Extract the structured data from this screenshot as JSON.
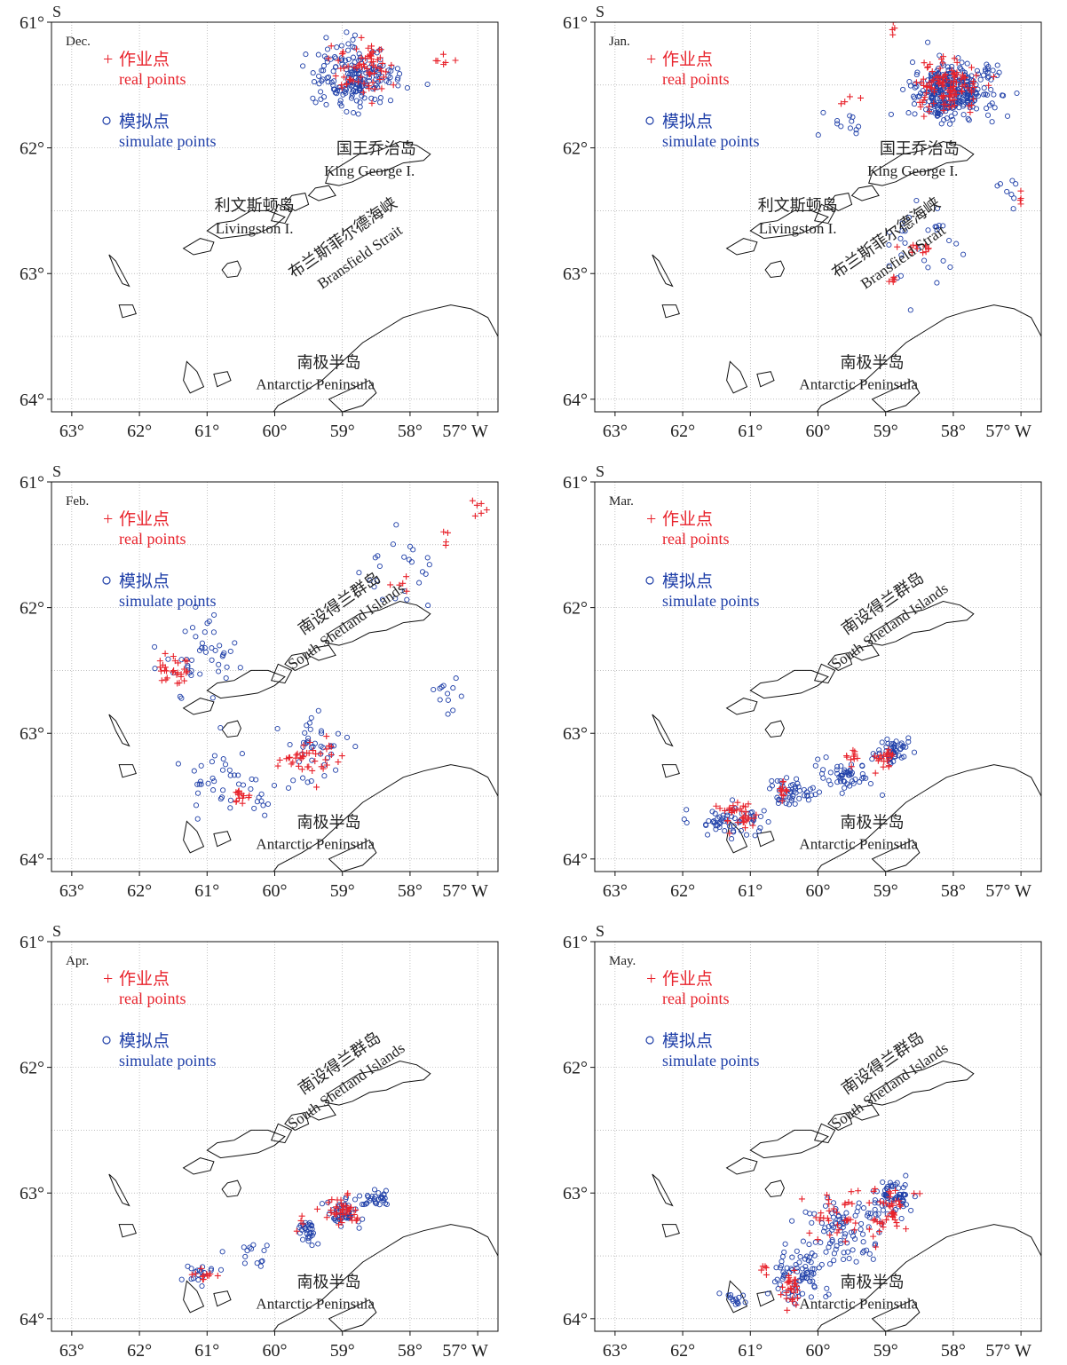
{
  "colors": {
    "real": "#e8222b",
    "simulated": "#1f3fa8",
    "coast": "#111111",
    "grid": "#9a9a9a",
    "text": "#222222"
  },
  "axes": {
    "lat_unit": "S",
    "lon_unit": "W",
    "lat_ticks": [
      "61°",
      "62°",
      "63°",
      "64°"
    ],
    "lon_ticks": [
      "63°",
      "62°",
      "61°",
      "60°",
      "59°",
      "58°",
      "57° W"
    ],
    "lat_range": [
      61.0,
      64.1
    ],
    "lon_range": [
      63.3,
      56.7
    ]
  },
  "legend": {
    "real_symbol": "+",
    "real_cn": "作业点",
    "real_en": "real points",
    "sim_symbol": "o",
    "sim_cn": "模拟点",
    "sim_en": "simulate points"
  },
  "place_labels": {
    "king_george_cn": "国王乔治岛",
    "king_george_en": "King George I.",
    "livingston_cn": "利文斯顿岛",
    "livingston_en": "Livingston I.",
    "bransfield_cn": "布兰斯菲尔德海峡",
    "bransfield_en": "Bransfield Strait",
    "peninsula_cn": "南极半岛",
    "peninsula_en": "Antarctic Peninsula",
    "shetland_cn": "南设得兰群岛",
    "shetland_en": "South Shetland Islands"
  },
  "chart_data": [
    {
      "type": "scatter",
      "month": "Dec.",
      "labels": [
        "king_george",
        "livingston",
        "bransfield",
        "peninsula"
      ],
      "real_clusters": [
        {
          "lon": 58.7,
          "lat": 61.35,
          "n": 70,
          "spread": [
            0.45,
            0.18
          ]
        },
        {
          "lon": 57.5,
          "lat": 61.3,
          "n": 6,
          "spread": [
            0.2,
            0.05
          ]
        }
      ],
      "sim_clusters": [
        {
          "lon": 58.8,
          "lat": 61.45,
          "n": 190,
          "spread": [
            0.55,
            0.22
          ]
        }
      ]
    },
    {
      "type": "scatter",
      "month": "Jan.",
      "labels": [
        "king_george",
        "livingston",
        "bransfield",
        "peninsula"
      ],
      "real_clusters": [
        {
          "lon": 58.1,
          "lat": 61.5,
          "n": 110,
          "spread": [
            0.45,
            0.18
          ]
        },
        {
          "lon": 58.9,
          "lat": 61.05,
          "n": 4,
          "spread": [
            0.05,
            0.08
          ]
        },
        {
          "lon": 58.5,
          "lat": 62.8,
          "n": 12,
          "spread": [
            0.2,
            0.06
          ]
        },
        {
          "lon": 58.9,
          "lat": 63.05,
          "n": 6,
          "spread": [
            0.05,
            0.06
          ]
        },
        {
          "lon": 57.0,
          "lat": 62.4,
          "n": 4,
          "spread": [
            0.02,
            0.06
          ]
        },
        {
          "lon": 59.5,
          "lat": 61.6,
          "n": 4,
          "spread": [
            0.15,
            0.1
          ]
        }
      ],
      "sim_clusters": [
        {
          "lon": 58.0,
          "lat": 61.55,
          "n": 320,
          "spread": [
            0.55,
            0.2
          ]
        },
        {
          "lon": 58.4,
          "lat": 62.75,
          "n": 30,
          "spread": [
            0.7,
            0.3
          ]
        },
        {
          "lon": 59.6,
          "lat": 61.85,
          "n": 12,
          "spread": [
            0.3,
            0.15
          ]
        },
        {
          "lon": 57.2,
          "lat": 62.3,
          "n": 8,
          "spread": [
            0.2,
            0.25
          ]
        }
      ]
    },
    {
      "type": "scatter",
      "month": "Feb.",
      "labels": [
        "shetland",
        "peninsula"
      ],
      "real_clusters": [
        {
          "lon": 61.5,
          "lat": 62.5,
          "n": 28,
          "spread": [
            0.25,
            0.12
          ]
        },
        {
          "lon": 60.5,
          "lat": 63.5,
          "n": 14,
          "spread": [
            0.12,
            0.06
          ]
        },
        {
          "lon": 59.5,
          "lat": 63.2,
          "n": 40,
          "spread": [
            0.4,
            0.12
          ]
        },
        {
          "lon": 57.0,
          "lat": 61.2,
          "n": 6,
          "spread": [
            0.1,
            0.08
          ]
        },
        {
          "lon": 57.5,
          "lat": 61.45,
          "n": 4,
          "spread": [
            0.05,
            0.08
          ]
        },
        {
          "lon": 58.2,
          "lat": 61.8,
          "n": 5,
          "spread": [
            0.2,
            0.08
          ]
        }
      ],
      "sim_clusters": [
        {
          "lon": 61.1,
          "lat": 62.4,
          "n": 45,
          "spread": [
            0.55,
            0.3
          ]
        },
        {
          "lon": 60.7,
          "lat": 63.4,
          "n": 45,
          "spread": [
            0.7,
            0.25
          ]
        },
        {
          "lon": 59.4,
          "lat": 63.1,
          "n": 40,
          "spread": [
            0.4,
            0.25
          ]
        },
        {
          "lon": 58.2,
          "lat": 61.7,
          "n": 24,
          "spread": [
            0.7,
            0.3
          ]
        },
        {
          "lon": 57.5,
          "lat": 62.7,
          "n": 12,
          "spread": [
            0.25,
            0.15
          ]
        }
      ]
    },
    {
      "type": "scatter",
      "month": "Mar.",
      "labels": [
        "shetland",
        "peninsula"
      ],
      "real_clusters": [
        {
          "lon": 61.2,
          "lat": 63.65,
          "n": 34,
          "spread": [
            0.35,
            0.1
          ]
        },
        {
          "lon": 60.5,
          "lat": 63.45,
          "n": 12,
          "spread": [
            0.1,
            0.08
          ]
        },
        {
          "lon": 59.5,
          "lat": 63.2,
          "n": 10,
          "spread": [
            0.1,
            0.06
          ]
        },
        {
          "lon": 59.0,
          "lat": 63.2,
          "n": 22,
          "spread": [
            0.15,
            0.1
          ]
        }
      ],
      "sim_clusters": [
        {
          "lon": 61.3,
          "lat": 63.7,
          "n": 60,
          "spread": [
            0.5,
            0.12
          ]
        },
        {
          "lon": 60.4,
          "lat": 63.45,
          "n": 50,
          "spread": [
            0.35,
            0.12
          ]
        },
        {
          "lon": 59.6,
          "lat": 63.35,
          "n": 50,
          "spread": [
            0.35,
            0.12
          ]
        },
        {
          "lon": 58.9,
          "lat": 63.15,
          "n": 50,
          "spread": [
            0.25,
            0.1
          ]
        }
      ]
    },
    {
      "type": "scatter",
      "month": "Apr.",
      "labels": [
        "shetland",
        "peninsula"
      ],
      "real_clusters": [
        {
          "lon": 61.0,
          "lat": 63.65,
          "n": 12,
          "spread": [
            0.15,
            0.05
          ]
        },
        {
          "lon": 59.0,
          "lat": 63.15,
          "n": 40,
          "spread": [
            0.2,
            0.1
          ]
        },
        {
          "lon": 59.6,
          "lat": 63.25,
          "n": 4,
          "spread": [
            0.1,
            0.06
          ]
        }
      ],
      "sim_clusters": [
        {
          "lon": 61.1,
          "lat": 63.65,
          "n": 18,
          "spread": [
            0.25,
            0.08
          ]
        },
        {
          "lon": 60.4,
          "lat": 63.5,
          "n": 14,
          "spread": [
            0.4,
            0.12
          ]
        },
        {
          "lon": 59.5,
          "lat": 63.3,
          "n": 30,
          "spread": [
            0.12,
            0.1
          ]
        },
        {
          "lon": 59.0,
          "lat": 63.15,
          "n": 45,
          "spread": [
            0.2,
            0.1
          ]
        },
        {
          "lon": 58.5,
          "lat": 63.05,
          "n": 30,
          "spread": [
            0.2,
            0.05
          ]
        }
      ]
    },
    {
      "type": "scatter",
      "month": "May.",
      "labels": [
        "shetland",
        "peninsula"
      ],
      "real_clusters": [
        {
          "lon": 60.4,
          "lat": 63.75,
          "n": 28,
          "spread": [
            0.15,
            0.15
          ]
        },
        {
          "lon": 59.7,
          "lat": 63.2,
          "n": 40,
          "spread": [
            0.5,
            0.2
          ]
        },
        {
          "lon": 58.9,
          "lat": 63.1,
          "n": 40,
          "spread": [
            0.3,
            0.15
          ]
        },
        {
          "lon": 60.8,
          "lat": 63.6,
          "n": 5,
          "spread": [
            0.1,
            0.05
          ]
        }
      ],
      "sim_clusters": [
        {
          "lon": 61.2,
          "lat": 63.85,
          "n": 14,
          "spread": [
            0.2,
            0.06
          ]
        },
        {
          "lon": 60.3,
          "lat": 63.65,
          "n": 80,
          "spread": [
            0.35,
            0.25
          ]
        },
        {
          "lon": 59.6,
          "lat": 63.3,
          "n": 80,
          "spread": [
            0.45,
            0.25
          ]
        },
        {
          "lon": 58.9,
          "lat": 63.05,
          "n": 70,
          "spread": [
            0.3,
            0.15
          ]
        }
      ]
    }
  ]
}
